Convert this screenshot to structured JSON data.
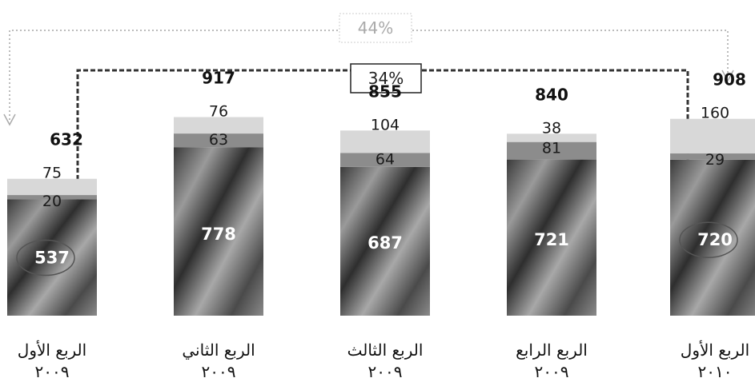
{
  "chart_data": {
    "type": "bar",
    "stacked": true,
    "categories": [
      {
        "line1": "الربع الأول",
        "line2": "٢٠٠٩"
      },
      {
        "line1": "الربع الثاني",
        "line2": "٢٠٠٩"
      },
      {
        "line1": "الربع الثالث",
        "line2": "٢٠٠٩"
      },
      {
        "line1": "الربع الرابع",
        "line2": "٢٠٠٩"
      },
      {
        "line1": "الربع الأول",
        "line2": "٢٠١٠"
      }
    ],
    "series": [
      {
        "values": [
          537,
          778,
          687,
          721,
          720
        ],
        "color": "#6e6e6e"
      },
      {
        "values": [
          20,
          63,
          64,
          81,
          29
        ],
        "color": "#8c8c8c"
      },
      {
        "values": [
          75,
          76,
          104,
          38,
          160
        ],
        "color": "#d8d8d8"
      }
    ],
    "totals": [
      632,
      917,
      855,
      840,
      908
    ],
    "growth_annotations": [
      {
        "label": "44%",
        "from_category": 0,
        "to_category": 4,
        "style": "dotted light"
      },
      {
        "label": "34%",
        "from_category": 0,
        "to_category": 4,
        "style": "dashed dark"
      }
    ],
    "highlighted_values": [
      537,
      720
    ],
    "grid": false,
    "legend": "none"
  }
}
